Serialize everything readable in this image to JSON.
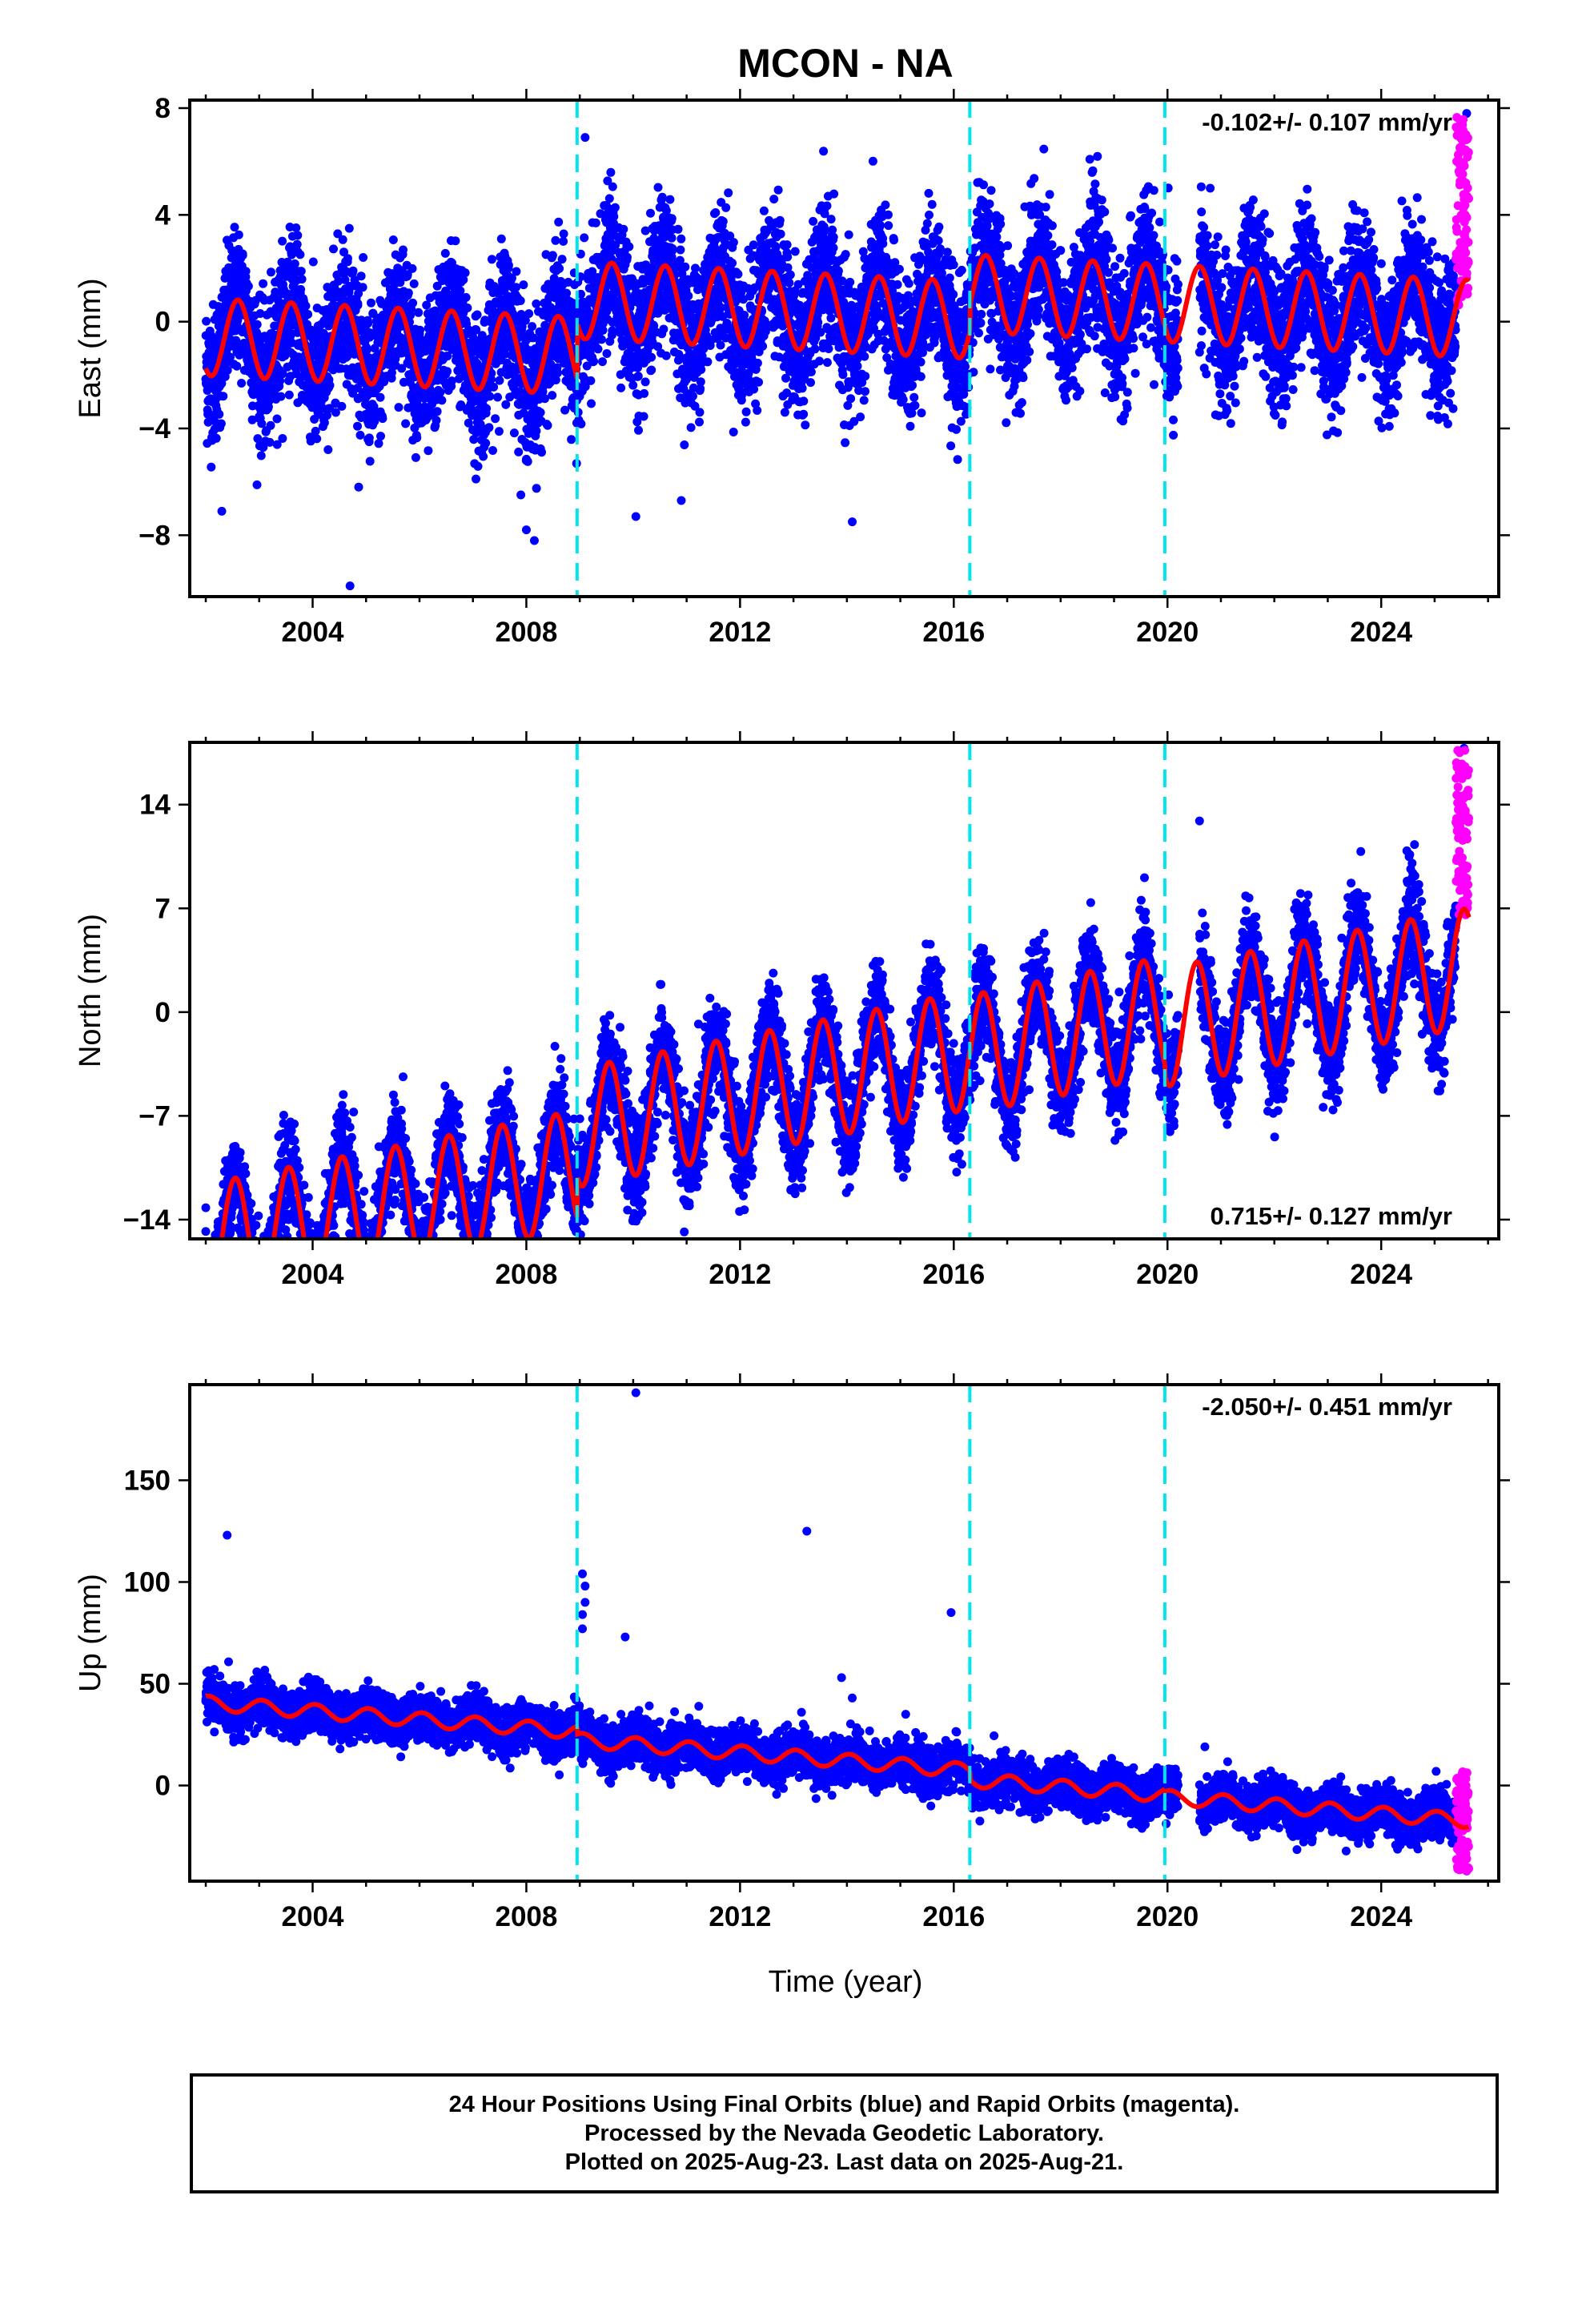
{
  "title": "MCON - NA",
  "xlabel": "Time (year)",
  "colors": {
    "final_orbits": "#0000ff",
    "rapid_orbits": "#ff00ff",
    "model": "#ff0000",
    "breaks": "#00e5ee",
    "frame": "#000000"
  },
  "footer": {
    "line1": "24 Hour Positions Using Final Orbits (blue) and Rapid Orbits (magenta).",
    "line2": "Processed by the Nevada Geodetic Laboratory.",
    "line3": "Plotted on 2025-Aug-23. Last data on 2025-Aug-21."
  },
  "chart_data": [
    {
      "type": "scatter",
      "component": "East",
      "ylabel": "East (mm)",
      "xlim": [
        2001.7,
        2026.2
      ],
      "ylim": [
        -10.3,
        8.3
      ],
      "yticks": [
        -8,
        -4,
        0,
        4,
        8
      ],
      "xticks": [
        2004,
        2008,
        2012,
        2016,
        2020,
        2024
      ],
      "rate_text": "-0.102+/- 0.107 mm/yr",
      "rate_position": "top-right",
      "equipment_breaks": [
        2008.95,
        2016.3,
        2019.95
      ],
      "series": [
        {
          "name": "Final Orbits (blue)",
          "style": "points",
          "x_range": [
            2002.0,
            2025.4
          ],
          "data_gap": [
            2020.2,
            2020.6
          ],
          "noise_sd": 1.3
        },
        {
          "name": "Rapid Orbits (magenta)",
          "style": "points",
          "x_range": [
            2025.4,
            2025.64
          ],
          "y_range": [
            0.5,
            7.8
          ]
        },
        {
          "name": "Model fit",
          "style": "line",
          "trend_segments": [
            {
              "x": [
                2002.0,
                2008.95
              ],
              "y0": -1.8,
              "slope": -0.102
            },
            {
              "x": [
                2008.95,
                2016.3
              ],
              "y0": 0.3,
              "slope": -0.102
            },
            {
              "x": [
                2016.3,
                2019.95
              ],
              "y0": 1.3,
              "slope": -0.102
            },
            {
              "x": [
                2019.95,
                2025.64
              ],
              "y0": 1.3,
              "slope": -0.102
            }
          ],
          "seasonal_amplitude": 1.45,
          "seasonal_peak_phase": 0.6
        }
      ],
      "outliers": [
        [
          2002.3,
          -7.1
        ],
        [
          2004.7,
          -9.9
        ],
        [
          2008.0,
          -7.8
        ],
        [
          2008.15,
          -8.2
        ],
        [
          2009.1,
          6.9
        ],
        [
          2010.05,
          -7.3
        ],
        [
          2010.9,
          -6.7
        ],
        [
          2014.1,
          -7.5
        ],
        [
          2020.8,
          5.0
        ],
        [
          2025.6,
          7.8
        ]
      ]
    },
    {
      "type": "scatter",
      "component": "North",
      "ylabel": "North (mm)",
      "xlim": [
        2001.7,
        2026.2
      ],
      "ylim": [
        -15.3,
        18.2
      ],
      "yticks": [
        -14,
        -7,
        0,
        7,
        14
      ],
      "xticks": [
        2004,
        2008,
        2012,
        2016,
        2020,
        2024
      ],
      "rate_text": "0.715+/- 0.127 mm/yr",
      "rate_position": "bottom-right",
      "equipment_breaks": [
        2008.95,
        2016.3,
        2019.95
      ],
      "series": [
        {
          "name": "Final Orbits (blue)",
          "style": "points",
          "x_range": [
            2002.0,
            2025.4
          ],
          "data_gap": [
            2020.2,
            2020.6
          ],
          "noise_sd": 1.7
        },
        {
          "name": "Rapid Orbits (magenta)",
          "style": "points",
          "x_range": [
            2025.4,
            2025.64
          ],
          "y_range": [
            6.5,
            17.8
          ]
        },
        {
          "name": "Model fit",
          "style": "line",
          "trend_segments": [
            {
              "x": [
                2002.0,
                2008.95
              ],
              "y0": -7.0,
              "slope": 0.715
            },
            {
              "x": [
                2008.95,
                2016.3
              ],
              "y0": -4.2,
              "slope": 0.715
            },
            {
              "x": [
                2016.3,
                2019.95
              ],
              "y0": -4.5,
              "slope": 0.715
            },
            {
              "x": [
                2019.95,
                2025.64
              ],
              "y0": -5.3,
              "slope": 0.715
            }
          ],
          "seasonal_amplitude": 4.0,
          "seasonal_peak_phase": 0.55
        }
      ],
      "outliers": [
        [
          2002.0,
          -14.8
        ],
        [
          2002.0,
          -13.2
        ],
        [
          2007.0,
          -11.7
        ],
        [
          2010.1,
          -13.8
        ],
        [
          2012.9,
          -10.3
        ],
        [
          2016.0,
          -6.0
        ],
        [
          2020.6,
          12.9
        ],
        [
          2025.55,
          17.8
        ]
      ]
    },
    {
      "type": "scatter",
      "component": "Up",
      "ylabel": "Up (mm)",
      "xlim": [
        2001.7,
        2026.2
      ],
      "ylim": [
        -47,
        197
      ],
      "yticks": [
        0,
        50,
        100,
        150
      ],
      "xticks": [
        2004,
        2008,
        2012,
        2016,
        2020,
        2024
      ],
      "rate_text": "-2.050+/- 0.451 mm/yr",
      "rate_position": "top-right",
      "equipment_breaks": [
        2008.95,
        2016.3,
        2019.95
      ],
      "series": [
        {
          "name": "Final Orbits (blue)",
          "style": "points",
          "x_range": [
            2002.0,
            2025.4
          ],
          "data_gap": [
            2020.2,
            2020.6
          ],
          "noise_sd": 5.5
        },
        {
          "name": "Rapid Orbits (magenta)",
          "style": "points",
          "x_range": [
            2025.4,
            2025.64
          ],
          "y_range": [
            -42,
            7
          ]
        },
        {
          "name": "Model fit",
          "style": "line",
          "trend_segments": [
            {
              "x": [
                2002.0,
                2008.95
              ],
              "y0": 16.0,
              "slope": -2.05
            },
            {
              "x": [
                2008.95,
                2016.3
              ],
              "y0": 12.0,
              "slope": -2.05
            },
            {
              "x": [
                2016.3,
                2019.95
              ],
              "y0": 7.5,
              "slope": -2.05
            },
            {
              "x": [
                2019.95,
                2025.64
              ],
              "y0": 6.5,
              "slope": -2.05
            }
          ],
          "seasonal_amplitude": 3.5,
          "seasonal_peak_phase": 0.05
        }
      ],
      "outliers": [
        [
          2002.4,
          123
        ],
        [
          2009.05,
          104
        ],
        [
          2009.1,
          98
        ],
        [
          2009.1,
          90
        ],
        [
          2009.05,
          84
        ],
        [
          2009.05,
          77
        ],
        [
          2009.85,
          73
        ],
        [
          2010.05,
          193
        ],
        [
          2013.25,
          125
        ],
        [
          2013.15,
          36
        ],
        [
          2013.9,
          53
        ],
        [
          2014.1,
          43
        ],
        [
          2015.1,
          35
        ],
        [
          2015.95,
          85
        ],
        [
          2016.1,
          18
        ],
        [
          2020.7,
          19
        ],
        [
          2025.6,
          -42
        ]
      ]
    }
  ]
}
